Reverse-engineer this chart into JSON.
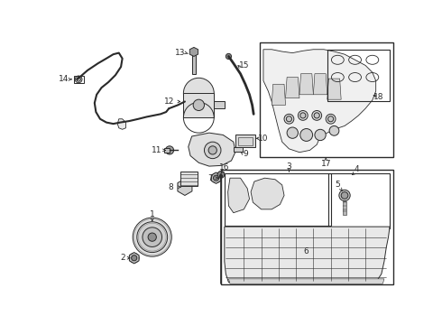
{
  "bg_color": "#ffffff",
  "lc": "#2a2a2a",
  "lw": 0.7,
  "fontsize": 6.5,
  "fig_w": 4.9,
  "fig_h": 3.6,
  "dpi": 100,
  "xlim": [
    0,
    490
  ],
  "ylim": [
    0,
    360
  ]
}
